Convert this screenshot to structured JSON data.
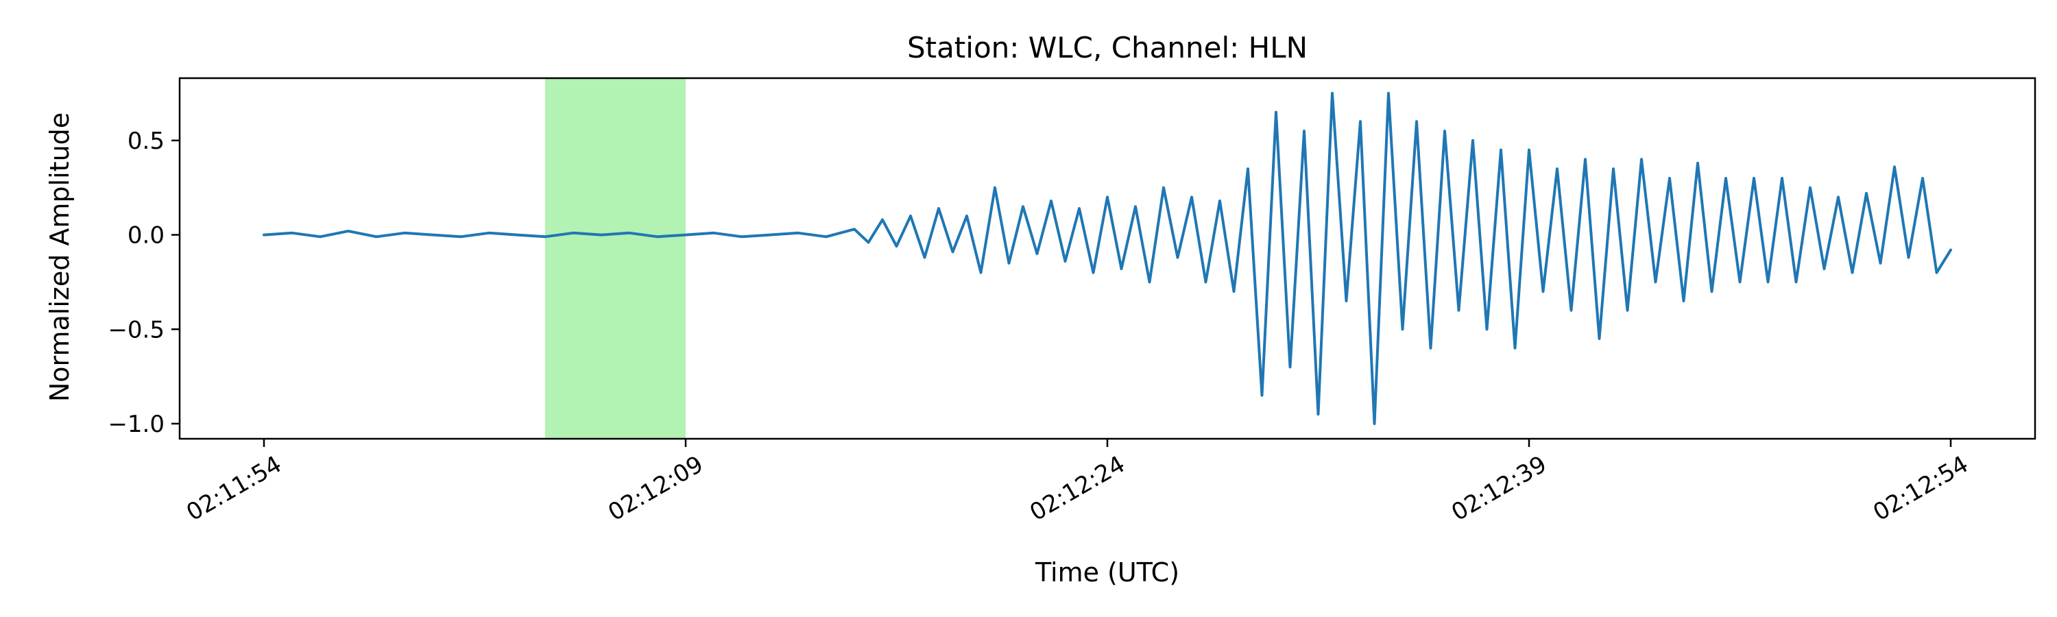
{
  "chart_data": {
    "type": "line",
    "title": "Station: WLC, Channel: HLN",
    "xlabel": "Time (UTC)",
    "ylabel": "Normalized Amplitude",
    "x_unit": "seconds",
    "x_range": [
      -3,
      63
    ],
    "ylim": [
      -1.08,
      0.83
    ],
    "x_ticks": [
      {
        "value": 0,
        "label": "02:11:54"
      },
      {
        "value": 15,
        "label": "02:12:09"
      },
      {
        "value": 30,
        "label": "02:12:24"
      },
      {
        "value": 45,
        "label": "02:12:39"
      },
      {
        "value": 60,
        "label": "02:12:54"
      }
    ],
    "y_ticks": [
      {
        "value": 0.5,
        "label": "0.5"
      },
      {
        "value": 0.0,
        "label": "0.0"
      },
      {
        "value": -0.5,
        "label": "−0.5"
      },
      {
        "value": -1.0,
        "label": "−1.0"
      }
    ],
    "highlight_window": {
      "x_start": 10,
      "x_end": 15,
      "color": "#b2f2b2"
    },
    "grid": false,
    "series": [
      {
        "color": "#1f77b4",
        "x": [
          0,
          1,
          2,
          3,
          4,
          5,
          6,
          7,
          8,
          9,
          10,
          11,
          12,
          13,
          14,
          15,
          16,
          17,
          18,
          19,
          20,
          21,
          21.5,
          22,
          22.5,
          23,
          23.5,
          24,
          24.5,
          25,
          25.5,
          26,
          26.5,
          27,
          27.5,
          28,
          28.5,
          29,
          29.5,
          30,
          30.5,
          31,
          31.5,
          32,
          32.5,
          33,
          33.5,
          34,
          34.5,
          35,
          35.5,
          36,
          36.5,
          37,
          37.5,
          38,
          38.5,
          39,
          39.5,
          40,
          40.5,
          41,
          41.5,
          42,
          42.5,
          43,
          43.5,
          44,
          44.5,
          45,
          45.5,
          46,
          46.5,
          47,
          47.5,
          48,
          48.5,
          49,
          49.5,
          50,
          50.5,
          51,
          51.5,
          52,
          52.5,
          53,
          53.5,
          54,
          54.5,
          55,
          55.5,
          56,
          56.5,
          57,
          57.5,
          58,
          58.5,
          59,
          59.5,
          60
        ],
        "y": [
          0.0,
          0.01,
          -0.01,
          0.02,
          -0.01,
          0.01,
          0.0,
          -0.01,
          0.01,
          0.0,
          -0.01,
          0.01,
          0.0,
          0.01,
          -0.01,
          0.0,
          0.01,
          -0.01,
          0.0,
          0.01,
          -0.01,
          0.03,
          -0.04,
          0.08,
          -0.06,
          0.1,
          -0.12,
          0.14,
          -0.09,
          0.1,
          -0.2,
          0.25,
          -0.15,
          0.15,
          -0.1,
          0.18,
          -0.14,
          0.14,
          -0.2,
          0.2,
          -0.18,
          0.15,
          -0.25,
          0.25,
          -0.12,
          0.2,
          -0.25,
          0.18,
          -0.3,
          0.35,
          -0.85,
          0.65,
          -0.7,
          0.55,
          -0.95,
          0.75,
          -0.35,
          0.6,
          -1.0,
          0.75,
          -0.5,
          0.6,
          -0.6,
          0.55,
          -0.4,
          0.5,
          -0.5,
          0.45,
          -0.6,
          0.45,
          -0.3,
          0.35,
          -0.4,
          0.4,
          -0.55,
          0.35,
          -0.4,
          0.4,
          -0.25,
          0.3,
          -0.35,
          0.38,
          -0.3,
          0.3,
          -0.25,
          0.3,
          -0.25,
          0.3,
          -0.25,
          0.25,
          -0.18,
          0.2,
          -0.2,
          0.22,
          -0.15,
          0.36,
          -0.12,
          0.3,
          -0.2,
          -0.08
        ]
      }
    ]
  }
}
